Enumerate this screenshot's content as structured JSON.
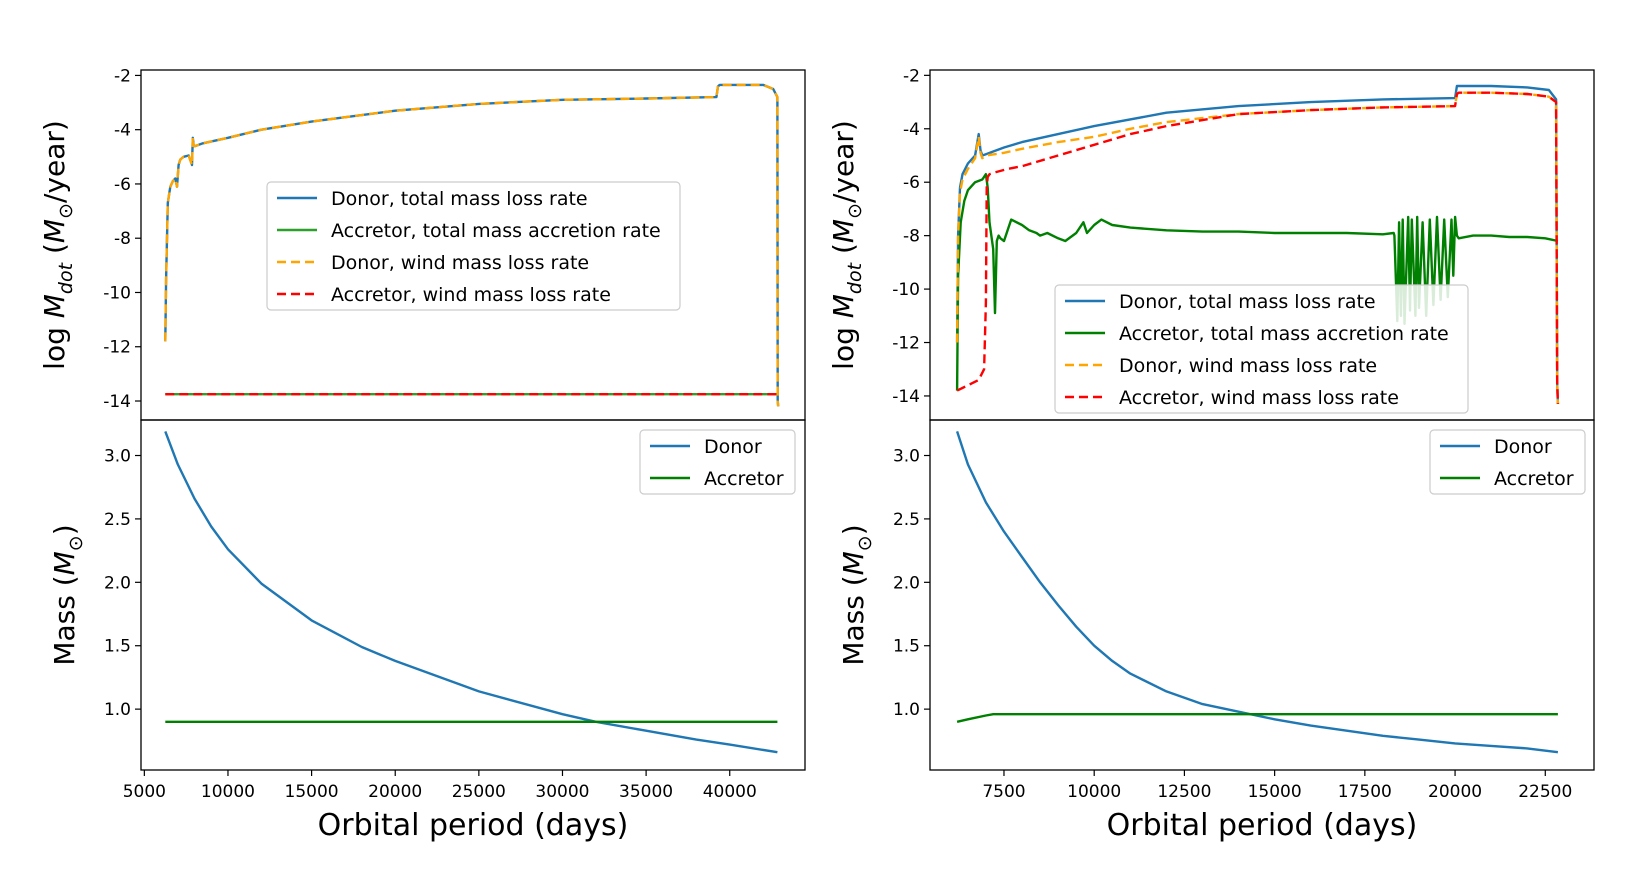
{
  "colors": {
    "donor_total": "#1f77b4",
    "accretor_total": "#2ca02c",
    "donor_wind": "#ffa500",
    "accretor_wind": "#ff0000",
    "accretor_mass": "#008000"
  },
  "chart_data": [
    {
      "id": "left-top",
      "type": "line",
      "xlabel": "",
      "ylabel": "log M_dot (M_⊙/year)",
      "xlim": [
        4800,
        44500
      ],
      "ylim": [
        -14.7,
        -1.8
      ],
      "yticks": [
        "-2",
        "-4",
        "-6",
        "-8",
        "-10",
        "-12",
        "-14"
      ],
      "ytick_values": [
        -2,
        -4,
        -6,
        -8,
        -10,
        -12,
        -14
      ],
      "legend_position": "center",
      "series": [
        {
          "name": "Donor, total mass loss rate",
          "color": "#1f77b4",
          "dash": false,
          "x": [
            6250,
            6300,
            6400,
            6550,
            6700,
            6850,
            6950,
            7050,
            7150,
            7350,
            7650,
            7850,
            7900,
            7950,
            8050,
            8500,
            10000,
            12000,
            15000,
            20000,
            25000,
            30000,
            35000,
            39200,
            39300,
            39400,
            41000,
            42000,
            42600,
            42850,
            42870,
            42900
          ],
          "y": [
            -11.8,
            -9.5,
            -6.7,
            -6.1,
            -5.9,
            -5.8,
            -6.1,
            -5.3,
            -5.1,
            -5.0,
            -4.95,
            -5.3,
            -4.3,
            -4.6,
            -4.6,
            -4.5,
            -4.3,
            -4.0,
            -3.7,
            -3.3,
            -3.05,
            -2.9,
            -2.85,
            -2.8,
            -2.4,
            -2.35,
            -2.35,
            -2.35,
            -2.5,
            -2.8,
            -14.0,
            -14.2
          ]
        },
        {
          "name": "Accretor, total mass accretion rate",
          "color": "#2ca02c",
          "dash": false,
          "x": [
            6250,
            42850
          ],
          "y": [
            -13.75,
            -13.75
          ]
        },
        {
          "name": "Donor, wind mass loss rate",
          "color": "#ffa500",
          "dash": true,
          "x": [
            6250,
            6300,
            6400,
            6550,
            6700,
            6850,
            6950,
            7050,
            7150,
            7350,
            7650,
            7850,
            7900,
            7950,
            8050,
            8500,
            10000,
            12000,
            15000,
            20000,
            25000,
            30000,
            35000,
            39200,
            39300,
            39400,
            41000,
            42000,
            42600,
            42850,
            42870,
            42900
          ],
          "y": [
            -11.8,
            -9.5,
            -6.7,
            -6.1,
            -5.9,
            -5.8,
            -6.1,
            -5.3,
            -5.1,
            -5.0,
            -4.95,
            -5.3,
            -4.3,
            -4.6,
            -4.6,
            -4.5,
            -4.3,
            -4.0,
            -3.7,
            -3.3,
            -3.05,
            -2.9,
            -2.85,
            -2.8,
            -2.4,
            -2.35,
            -2.35,
            -2.35,
            -2.5,
            -2.8,
            -14.0,
            -14.2
          ]
        },
        {
          "name": "Accretor, wind mass loss rate",
          "color": "#ff0000",
          "dash": true,
          "x": [
            6250,
            42850
          ],
          "y": [
            -13.75,
            -13.75
          ]
        }
      ]
    },
    {
      "id": "left-bottom",
      "type": "line",
      "xlabel": "Orbital period (days)",
      "ylabel": "Mass (M_⊙)",
      "xlim": [
        4800,
        44500
      ],
      "ylim": [
        0.52,
        3.28
      ],
      "xticks": [
        "5000",
        "10000",
        "15000",
        "20000",
        "25000",
        "30000",
        "35000",
        "40000"
      ],
      "xtick_values": [
        5000,
        10000,
        15000,
        20000,
        25000,
        30000,
        35000,
        40000
      ],
      "yticks": [
        "1.0",
        "1.5",
        "2.0",
        "2.5",
        "3.0"
      ],
      "ytick_values": [
        1.0,
        1.5,
        2.0,
        2.5,
        3.0
      ],
      "legend_position": "upper right",
      "series": [
        {
          "name": "Donor",
          "color": "#1f77b4",
          "dash": false,
          "x": [
            6250,
            7000,
            8000,
            9000,
            10000,
            12000,
            15000,
            18000,
            20000,
            25000,
            30000,
            32000,
            35000,
            38000,
            40000,
            42850
          ],
          "y": [
            3.19,
            2.93,
            2.66,
            2.44,
            2.26,
            1.99,
            1.7,
            1.49,
            1.38,
            1.14,
            0.96,
            0.9,
            0.83,
            0.76,
            0.72,
            0.66
          ]
        },
        {
          "name": "Accretor",
          "color": "#008000",
          "dash": false,
          "x": [
            6250,
            42850
          ],
          "y": [
            0.9,
            0.9
          ]
        }
      ]
    },
    {
      "id": "right-top",
      "type": "line",
      "xlabel": "",
      "ylabel": "log M_dot (M_⊙/year)",
      "xlim": [
        5450,
        23850
      ],
      "ylim": [
        -14.9,
        -1.8
      ],
      "yticks": [
        "-2",
        "-4",
        "-6",
        "-8",
        "-10",
        "-12",
        "-14"
      ],
      "ytick_values": [
        -2,
        -4,
        -6,
        -8,
        -10,
        -12,
        -14
      ],
      "legend_position": "lower center",
      "series": [
        {
          "name": "Donor, total mass loss rate",
          "color": "#1f77b4",
          "dash": false,
          "x": [
            6200,
            6230,
            6280,
            6350,
            6500,
            6700,
            6800,
            6850,
            6900,
            7000,
            7200,
            7500,
            8000,
            9000,
            10000,
            12000,
            14000,
            16000,
            18000,
            20000,
            20050,
            20100,
            21000,
            22000,
            22600,
            22800,
            22830,
            22850
          ],
          "y": [
            -12.0,
            -8.0,
            -6.2,
            -5.7,
            -5.3,
            -5.0,
            -4.2,
            -4.8,
            -5.0,
            -4.95,
            -4.85,
            -4.7,
            -4.5,
            -4.2,
            -3.9,
            -3.4,
            -3.15,
            -3.0,
            -2.9,
            -2.85,
            -2.4,
            -2.4,
            -2.4,
            -2.45,
            -2.55,
            -2.9,
            -13.5,
            -14.3
          ]
        },
        {
          "name": "Accretor, total mass accretion rate",
          "color": "#008000",
          "dash": false,
          "x": [
            6200,
            6230,
            6300,
            6400,
            6500,
            6700,
            6900,
            7000,
            7050,
            7100,
            7200,
            7250,
            7300,
            7350,
            7400,
            7500,
            7600,
            7700,
            8000,
            8200,
            8400,
            8500,
            8700,
            9000,
            9200,
            9500,
            9700,
            9800,
            10000,
            10200,
            10500,
            11000,
            12000,
            13000,
            14000,
            15000,
            16000,
            17000,
            18000,
            18300,
            18320,
            18400,
            18450,
            18500,
            18550,
            18600,
            18700,
            18750,
            18800,
            18900,
            18950,
            19000,
            19100,
            19200,
            19300,
            19400,
            19500,
            19600,
            19700,
            19800,
            19900,
            19950,
            20000,
            20050,
            20100,
            20500,
            21000,
            21500,
            22000,
            22500,
            22850
          ],
          "y": [
            -13.8,
            -9.5,
            -7.5,
            -6.7,
            -6.3,
            -6.0,
            -5.9,
            -5.7,
            -6.2,
            -7.5,
            -8.5,
            -10.9,
            -8.2,
            -8.0,
            -8.1,
            -8.2,
            -7.8,
            -7.4,
            -7.6,
            -7.8,
            -7.9,
            -8.0,
            -7.9,
            -8.1,
            -8.2,
            -7.9,
            -7.5,
            -7.9,
            -7.6,
            -7.4,
            -7.6,
            -7.7,
            -7.8,
            -7.85,
            -7.85,
            -7.9,
            -7.9,
            -7.9,
            -7.95,
            -7.9,
            -8.0,
            -11.2,
            -7.5,
            -11.0,
            -7.4,
            -11.3,
            -7.3,
            -10.8,
            -7.4,
            -11.0,
            -7.3,
            -10.7,
            -7.5,
            -11.0,
            -7.4,
            -10.6,
            -7.3,
            -10.4,
            -7.4,
            -10.3,
            -7.4,
            -9.5,
            -7.3,
            -8.0,
            -8.1,
            -8.0,
            -8.0,
            -8.05,
            -8.05,
            -8.1,
            -8.2
          ]
        },
        {
          "name": "Donor, wind mass loss rate",
          "color": "#ffa500",
          "dash": true,
          "x": [
            6200,
            6230,
            6280,
            6350,
            6500,
            6700,
            6800,
            6850,
            6900,
            7000,
            7500,
            8000,
            9000,
            10000,
            11000,
            12000,
            14000,
            16000,
            18000,
            20000,
            20050,
            20100,
            21000,
            22000,
            22600,
            22800,
            22830,
            22850
          ],
          "y": [
            -12.0,
            -8.0,
            -6.4,
            -5.9,
            -5.5,
            -5.1,
            -4.3,
            -4.9,
            -5.1,
            -5.0,
            -4.9,
            -4.75,
            -4.5,
            -4.3,
            -4.0,
            -3.75,
            -3.45,
            -3.3,
            -3.2,
            -3.15,
            -2.7,
            -2.65,
            -2.65,
            -2.7,
            -2.8,
            -3.0,
            -13.5,
            -14.3
          ]
        },
        {
          "name": "Accretor, wind mass loss rate",
          "color": "#ff0000",
          "dash": true,
          "x": [
            6200,
            6500,
            6800,
            6950,
            7000,
            7020,
            7050,
            7100,
            7200,
            7600,
            8000,
            9000,
            10000,
            11000,
            12000,
            14000,
            16000,
            18000,
            20000,
            20050,
            20100,
            21000,
            22000,
            22600,
            22800,
            22830,
            22850
          ],
          "y": [
            -13.8,
            -13.6,
            -13.4,
            -13.0,
            -10.5,
            -6.2,
            -5.8,
            -5.7,
            -5.65,
            -5.5,
            -5.4,
            -5.0,
            -4.6,
            -4.2,
            -3.9,
            -3.45,
            -3.3,
            -3.2,
            -3.15,
            -2.7,
            -2.65,
            -2.65,
            -2.7,
            -2.8,
            -3.0,
            -13.5,
            -14.3
          ]
        }
      ]
    },
    {
      "id": "right-bottom",
      "type": "line",
      "xlabel": "Orbital period (days)",
      "ylabel": "Mass (M_⊙)",
      "xlim": [
        5450,
        23850
      ],
      "ylim": [
        0.52,
        3.28
      ],
      "xticks": [
        "7500",
        "10000",
        "12500",
        "15000",
        "17500",
        "20000",
        "22500"
      ],
      "xtick_values": [
        7500,
        10000,
        12500,
        15000,
        17500,
        20000,
        22500
      ],
      "yticks": [
        "1.0",
        "1.5",
        "2.0",
        "2.5",
        "3.0"
      ],
      "ytick_values": [
        1.0,
        1.5,
        2.0,
        2.5,
        3.0
      ],
      "legend_position": "upper right",
      "series": [
        {
          "name": "Donor",
          "color": "#1f77b4",
          "dash": false,
          "x": [
            6200,
            6500,
            7000,
            7500,
            8000,
            8500,
            9000,
            9500,
            10000,
            10500,
            11000,
            12000,
            13000,
            14000,
            15000,
            16000,
            17000,
            18000,
            19000,
            20000,
            21000,
            22000,
            22850
          ],
          "y": [
            3.19,
            2.93,
            2.63,
            2.4,
            2.2,
            2.0,
            1.82,
            1.65,
            1.5,
            1.38,
            1.28,
            1.14,
            1.04,
            0.98,
            0.92,
            0.87,
            0.83,
            0.79,
            0.76,
            0.73,
            0.71,
            0.69,
            0.66
          ]
        },
        {
          "name": "Accretor",
          "color": "#008000",
          "dash": false,
          "x": [
            6200,
            6500,
            7000,
            7200,
            8000,
            10000,
            15000,
            20000,
            22850
          ],
          "y": [
            0.9,
            0.92,
            0.95,
            0.96,
            0.96,
            0.96,
            0.96,
            0.96,
            0.96
          ]
        }
      ]
    }
  ]
}
